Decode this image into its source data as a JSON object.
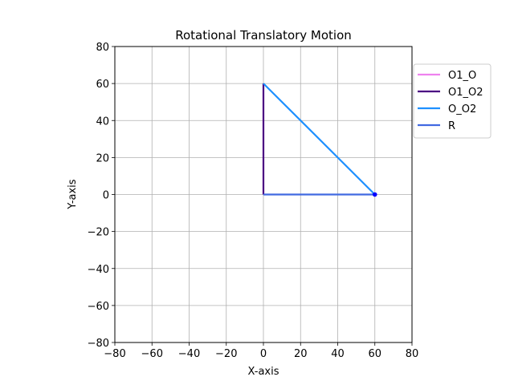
{
  "chart_data": {
    "type": "line",
    "title": "Rotational Translatory Motion",
    "xlabel": "X-axis",
    "ylabel": "Y-axis",
    "xlim": [
      -80,
      80
    ],
    "ylim": [
      -80,
      80
    ],
    "xticks": [
      -80,
      -60,
      -40,
      -20,
      0,
      20,
      40,
      60,
      80
    ],
    "yticks": [
      -80,
      -60,
      -40,
      -20,
      0,
      20,
      40,
      60,
      80
    ],
    "xtick_labels": [
      "−80",
      "−60",
      "−40",
      "−20",
      "0",
      "20",
      "40",
      "60",
      "80"
    ],
    "ytick_labels": [
      "−80",
      "−60",
      "−40",
      "−20",
      "0",
      "20",
      "40",
      "60",
      "80"
    ],
    "grid": true,
    "legend_position": "outside-right-top",
    "series": [
      {
        "name": "O1_O",
        "color": "#ee82ee",
        "x": [
          0,
          0
        ],
        "y": [
          0,
          0
        ]
      },
      {
        "name": "O1_O2",
        "color": "#4b0082",
        "x": [
          0,
          0
        ],
        "y": [
          0,
          60
        ]
      },
      {
        "name": "O_O2",
        "color": "#1e90ff",
        "x": [
          0,
          60
        ],
        "y": [
          60,
          0
        ]
      },
      {
        "name": "R",
        "color": "#4169e1",
        "x": [
          0,
          60
        ],
        "y": [
          0,
          0
        ]
      }
    ],
    "marker": {
      "x": 60,
      "y": 0,
      "color": "#0000ff"
    }
  }
}
